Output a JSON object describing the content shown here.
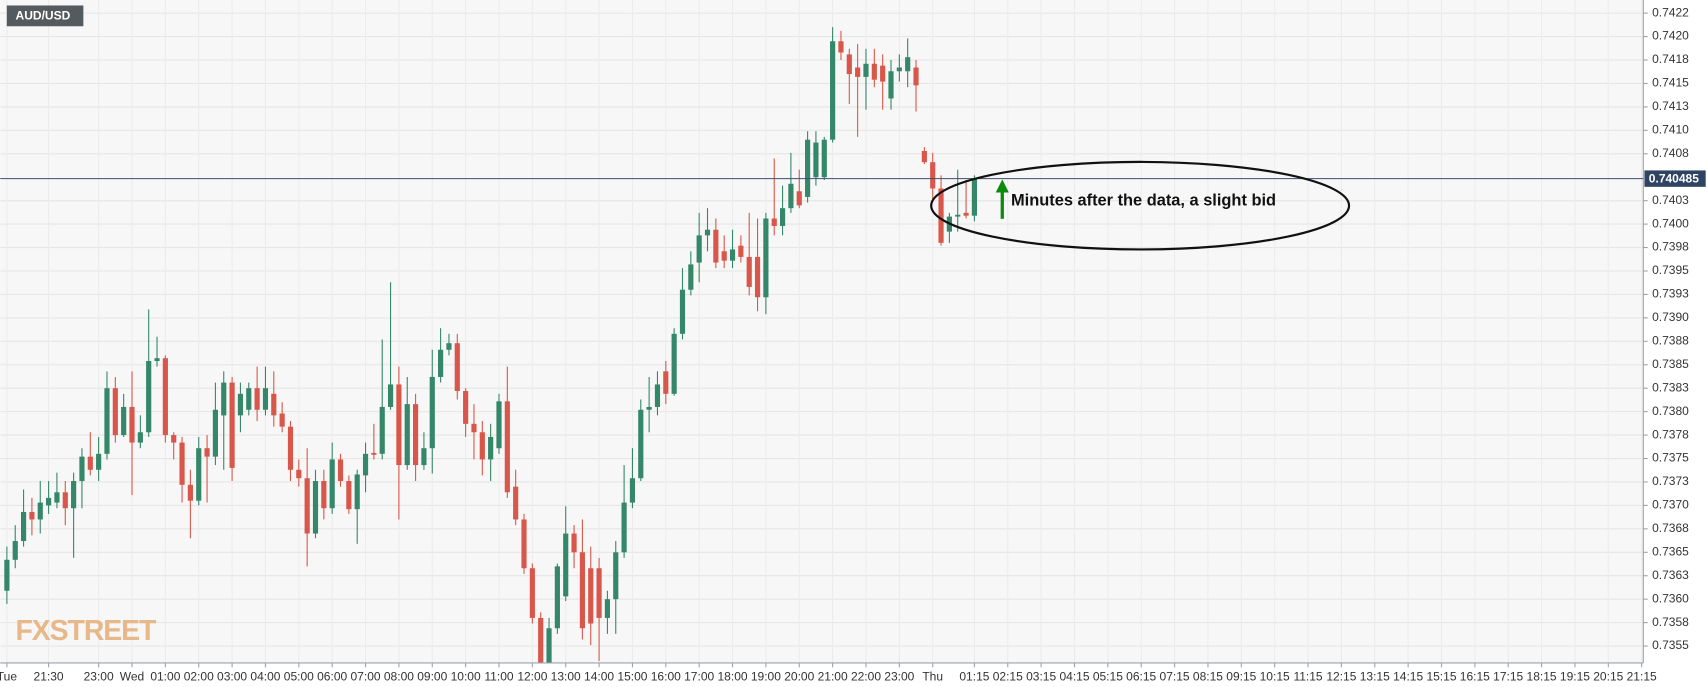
{
  "chart_data": {
    "type": "candlestick",
    "symbol": "AUD/USD",
    "watermark": "FXSTREET",
    "annotation": "Minutes after the data, a slight bid",
    "up_color": "#35876a",
    "down_color": "#d9574a",
    "current_price": 0.740485,
    "grid": true,
    "open": [
      0.73609,
      0.73642,
      0.73662,
      0.73693,
      0.73685,
      0.737,
      0.73703,
      0.73714,
      0.73697,
      0.73726,
      0.73752,
      0.73738,
      0.73755,
      0.73825,
      0.73775,
      0.73805,
      0.73767,
      0.73778,
      0.73854,
      0.73857,
      0.73775,
      0.73767,
      0.73722,
      0.73705,
      0.73761,
      0.73752,
      0.73796,
      0.73831,
      0.73796,
      0.73802,
      0.73825,
      0.73802,
      0.73819,
      0.73798,
      0.73784,
      0.73738,
      0.73729,
      0.7367,
      0.73726,
      0.73697,
      0.73749,
      0.73726,
      0.73696,
      0.73732,
      0.73756,
      0.73755,
      0.73805,
      0.73829,
      0.73743,
      0.73808,
      0.73743,
      0.73761,
      0.73837,
      0.73866,
      0.73873,
      0.73822,
      0.73787,
      0.73778,
      0.73749,
      0.73761,
      0.73811,
      0.7372,
      0.73685,
      0.73633,
      0.7358,
      0.7353,
      0.73569,
      0.73603,
      0.7367,
      0.7365,
      0.73633,
      0.73633,
      0.7358,
      0.736,
      0.7365,
      0.73703,
      0.73729,
      0.73802,
      0.73805,
      0.73843,
      0.73819,
      0.73883,
      0.7393,
      0.73959,
      0.73988,
      0.73994,
      0.73971,
      0.73961,
      0.73977,
      0.73965,
      0.73965,
      0.73922,
      0.74006,
      0.73998,
      0.74017,
      0.74035,
      0.74029,
      0.7405,
      0.7405,
      0.7409,
      0.74195,
      0.74181,
      0.74167,
      0.74157,
      0.74171,
      0.74169,
      0.74134,
      0.74163,
      0.74163,
      0.74167,
      0.74078,
      0.74066,
      0.74038,
      0.73992,
      0.74008,
      0.74012,
      0.74009
    ],
    "high": [
      0.73656,
      0.73679,
      0.73717,
      0.73708,
      0.73726,
      0.73726,
      0.73735,
      0.73726,
      0.73735,
      0.73761,
      0.73778,
      0.73773,
      0.73843,
      0.73837,
      0.73819,
      0.73843,
      0.73796,
      0.73909,
      0.7388,
      0.7386,
      0.73778,
      0.73773,
      0.73738,
      0.73773,
      0.73775,
      0.73831,
      0.73843,
      0.73837,
      0.73831,
      0.73831,
      0.73848,
      0.73848,
      0.73843,
      0.7381,
      0.7379,
      0.73749,
      0.73761,
      0.73738,
      0.73738,
      0.73767,
      0.73755,
      0.73732,
      0.73738,
      0.73767,
      0.73787,
      0.73877,
      0.73938,
      0.73848,
      0.73837,
      0.73819,
      0.73778,
      0.73866,
      0.73889,
      0.73883,
      0.73883,
      0.73825,
      0.73808,
      0.7379,
      0.73787,
      0.73819,
      0.73848,
      0.73738,
      0.73691,
      0.73638,
      0.73586,
      0.7358,
      0.73638,
      0.73699,
      0.73679,
      0.73685,
      0.73656,
      0.73644,
      0.73609,
      0.73662,
      0.73743,
      0.73761,
      0.73813,
      0.73837,
      0.73843,
      0.73854,
      0.73889,
      0.73953,
      0.73971,
      0.74012,
      0.74017,
      0.74006,
      0.73988,
      0.73994,
      0.73988,
      0.74012,
      0.74006,
      0.74012,
      0.7407,
      0.74041,
      0.74076,
      0.74058,
      0.74099,
      0.74099,
      0.74093,
      0.7421,
      0.74206,
      0.74187,
      0.74192,
      0.74187,
      0.74187,
      0.74181,
      0.74175,
      0.74181,
      0.74198,
      0.74175,
      0.74082,
      0.74076,
      0.74052,
      0.74012,
      0.74058,
      0.74047,
      0.74052
    ],
    "low": [
      0.73595,
      0.73633,
      0.73656,
      0.73668,
      0.7367,
      0.73691,
      0.73697,
      0.73679,
      0.73644,
      0.73697,
      0.73732,
      0.73726,
      0.73749,
      0.73767,
      0.73773,
      0.73711,
      0.73761,
      0.73773,
      0.73848,
      0.73767,
      0.73749,
      0.73703,
      0.73665,
      0.737,
      0.73703,
      0.73743,
      0.73738,
      0.73726,
      0.73778,
      0.73796,
      0.7379,
      0.73796,
      0.73784,
      0.73778,
      0.73726,
      0.7372,
      0.73635,
      0.73665,
      0.73685,
      0.73691,
      0.7372,
      0.73691,
      0.73659,
      0.73714,
      0.73749,
      0.73749,
      0.73802,
      0.73685,
      0.73738,
      0.73726,
      0.73738,
      0.73734,
      0.73831,
      0.7386,
      0.73813,
      0.73773,
      0.73749,
      0.73732,
      0.73726,
      0.73755,
      0.73708,
      0.73679,
      0.73627,
      0.73574,
      0.73516,
      0.73516,
      0.73563,
      0.73598,
      0.73633,
      0.73557,
      0.73551,
      0.73534,
      0.73563,
      0.73563,
      0.73644,
      0.73697,
      0.73726,
      0.73778,
      0.73796,
      0.73808,
      0.73817,
      0.73877,
      0.73924,
      0.73938,
      0.73971,
      0.73953,
      0.73953,
      0.73953,
      0.73959,
      0.73924,
      0.73907,
      0.73904,
      0.73988,
      0.73988,
      0.74012,
      0.74017,
      0.74023,
      0.74041,
      0.74047,
      0.74087,
      0.74175,
      0.74128,
      0.74093,
      0.74122,
      0.74146,
      0.74122,
      0.74122,
      0.74152,
      0.74146,
      0.7412,
      0.74064,
      0.74023,
      0.73977,
      0.7398,
      0.73992,
      0.74006,
      0.74003
    ],
    "close": [
      0.73642,
      0.73662,
      0.73693,
      0.73685,
      0.73703,
      0.73708,
      0.73714,
      0.73697,
      0.73726,
      0.73752,
      0.73738,
      0.73755,
      0.73825,
      0.73775,
      0.73805,
      0.73767,
      0.73778,
      0.73854,
      0.73857,
      0.73775,
      0.73767,
      0.73722,
      0.73705,
      0.73761,
      0.73752,
      0.73802,
      0.73831,
      0.7374,
      0.73819,
      0.73825,
      0.73802,
      0.73825,
      0.73796,
      0.73784,
      0.73738,
      0.73729,
      0.7367,
      0.73726,
      0.73697,
      0.73749,
      0.73726,
      0.73696,
      0.73733,
      0.73755,
      0.73754,
      0.73805,
      0.73829,
      0.73743,
      0.73808,
      0.73743,
      0.73761,
      0.73837,
      0.73866,
      0.73873,
      0.73822,
      0.73787,
      0.73778,
      0.73749,
      0.73773,
      0.73811,
      0.73714,
      0.73685,
      0.73633,
      0.7358,
      0.7353,
      0.73569,
      0.73635,
      0.7367,
      0.7365,
      0.73569,
      0.73574,
      0.7358,
      0.736,
      0.7365,
      0.73703,
      0.73729,
      0.73802,
      0.73805,
      0.73829,
      0.73819,
      0.73883,
      0.7393,
      0.73957,
      0.73988,
      0.73994,
      0.73959,
      0.73961,
      0.73973,
      0.73965,
      0.73933,
      0.73922,
      0.74006,
      0.73998,
      0.74017,
      0.74043,
      0.7402,
      0.7409,
      0.74087,
      0.7409,
      0.74195,
      0.74183,
      0.7416,
      0.74157,
      0.74171,
      0.74154,
      0.74152,
      0.74163,
      0.74167,
      0.74178,
      0.74148,
      0.74066,
      0.74038,
      0.7398,
      0.74008,
      0.7401,
      0.74009,
      0.74049
    ],
    "xlim": [
      -0.8,
      196.2
    ],
    "xticks": [
      {
        "value": 0,
        "label": "Tue"
      },
      {
        "value": 5,
        "label": "21:30"
      },
      {
        "value": 11,
        "label": "23:00"
      },
      {
        "value": 15,
        "label": "Wed"
      },
      {
        "value": 19,
        "label": "01:00"
      },
      {
        "value": 23,
        "label": "02:00"
      },
      {
        "value": 27,
        "label": "03:00"
      },
      {
        "value": 31,
        "label": "04:00"
      },
      {
        "value": 35,
        "label": "05:00"
      },
      {
        "value": 39,
        "label": "06:00"
      },
      {
        "value": 43,
        "label": "07:00"
      },
      {
        "value": 47,
        "label": "08:00"
      },
      {
        "value": 51,
        "label": "09:00"
      },
      {
        "value": 55,
        "label": "10:00"
      },
      {
        "value": 59,
        "label": "11:00"
      },
      {
        "value": 63,
        "label": "12:00"
      },
      {
        "value": 67,
        "label": "13:00"
      },
      {
        "value": 71,
        "label": "14:00"
      },
      {
        "value": 75,
        "label": "15:00"
      },
      {
        "value": 79,
        "label": "16:00"
      },
      {
        "value": 83,
        "label": "17:00"
      },
      {
        "value": 87,
        "label": "18:00"
      },
      {
        "value": 91,
        "label": "19:00"
      },
      {
        "value": 95,
        "label": "20:00"
      },
      {
        "value": 99,
        "label": "21:00"
      },
      {
        "value": 103,
        "label": "22:00"
      },
      {
        "value": 107,
        "label": "23:00"
      },
      {
        "value": 111,
        "label": "Thu"
      },
      {
        "value": 116,
        "label": "01:15"
      },
      {
        "value": 120,
        "label": "02:15"
      },
      {
        "value": 124,
        "label": "03:15"
      },
      {
        "value": 128,
        "label": "04:15"
      },
      {
        "value": 132,
        "label": "05:15"
      },
      {
        "value": 136,
        "label": "06:15"
      },
      {
        "value": 140,
        "label": "07:15"
      },
      {
        "value": 144,
        "label": "08:15"
      },
      {
        "value": 148,
        "label": "09:15"
      },
      {
        "value": 152,
        "label": "10:15"
      },
      {
        "value": 156,
        "label": "11:15"
      },
      {
        "value": 160,
        "label": "12:15"
      },
      {
        "value": 164,
        "label": "13:15"
      },
      {
        "value": 168,
        "label": "14:15"
      },
      {
        "value": 172,
        "label": "15:15"
      },
      {
        "value": 176,
        "label": "16:15"
      },
      {
        "value": 180,
        "label": "17:15"
      },
      {
        "value": 184,
        "label": "18:15"
      },
      {
        "value": 188,
        "label": "19:15"
      },
      {
        "value": 192,
        "label": "20:15"
      },
      {
        "value": 196,
        "label": "21:15"
      }
    ],
    "ylim": [
      0.73532,
      0.74239
    ],
    "yticks": [
      0.7355,
      {
        "value": 0.73575,
        "label": "0.7358"
      },
      {
        "value": 0.736,
        "label": "0.7360"
      },
      {
        "value": 0.73625,
        "label": "0.7363"
      },
      0.7365,
      {
        "value": 0.73675,
        "label": "0.7368"
      },
      {
        "value": 0.737,
        "label": "0.7370"
      },
      {
        "value": 0.73725,
        "label": "0.7373"
      },
      0.7375,
      {
        "value": 0.73775,
        "label": "0.7378"
      },
      {
        "value": 0.738,
        "label": "0.7380"
      },
      {
        "value": 0.73825,
        "label": "0.7383"
      },
      0.7385,
      {
        "value": 0.73875,
        "label": "0.7388"
      },
      {
        "value": 0.739,
        "label": "0.7390"
      },
      {
        "value": 0.73925,
        "label": "0.7393"
      },
      0.7395,
      {
        "value": 0.73975,
        "label": "0.7398"
      },
      {
        "value": 0.74,
        "label": "0.7400"
      },
      {
        "value": 0.74025,
        "label": "0.7403"
      },
      {
        "value": 0.74075,
        "label": "0.7408"
      },
      {
        "value": 0.741,
        "label": "0.7410"
      },
      {
        "value": 0.74125,
        "label": "0.7413"
      },
      0.7415,
      {
        "value": 0.74175,
        "label": "0.7418"
      },
      {
        "value": 0.742,
        "label": "0.7420"
      },
      {
        "value": 0.74225,
        "label": "0.7422"
      }
    ]
  }
}
